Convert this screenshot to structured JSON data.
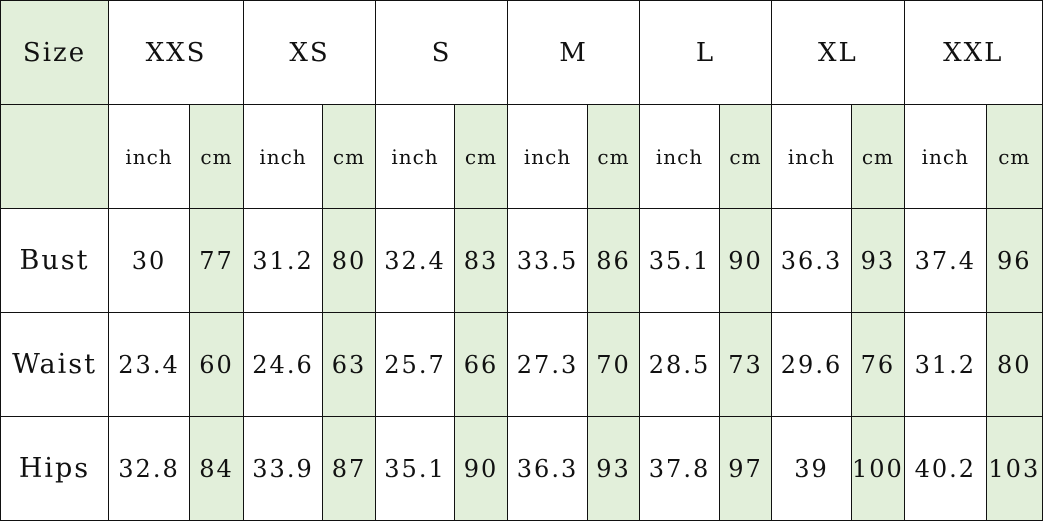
{
  "table": {
    "corner_label": "Size",
    "sizes": [
      "XXS",
      "XS",
      "S",
      "M",
      "L",
      "XL",
      "XXL"
    ],
    "units": [
      "inch",
      "cm"
    ],
    "rows": [
      {
        "label": "Bust",
        "values": [
          [
            "30",
            "77"
          ],
          [
            "31.2",
            "80"
          ],
          [
            "32.4",
            "83"
          ],
          [
            "33.5",
            "86"
          ],
          [
            "35.1",
            "90"
          ],
          [
            "36.3",
            "93"
          ],
          [
            "37.4",
            "96"
          ]
        ]
      },
      {
        "label": "Waist",
        "values": [
          [
            "23.4",
            "60"
          ],
          [
            "24.6",
            "63"
          ],
          [
            "25.7",
            "66"
          ],
          [
            "27.3",
            "70"
          ],
          [
            "28.5",
            "73"
          ],
          [
            "29.6",
            "76"
          ],
          [
            "31.2",
            "80"
          ]
        ]
      },
      {
        "label": "Hips",
        "values": [
          [
            "32.8",
            "84"
          ],
          [
            "33.9",
            "87"
          ],
          [
            "35.1",
            "90"
          ],
          [
            "36.3",
            "93"
          ],
          [
            "37.8",
            "97"
          ],
          [
            "39",
            "100"
          ],
          [
            "40.2",
            "103"
          ]
        ]
      }
    ]
  },
  "colors": {
    "highlight": "#e2efda",
    "border": "#111111"
  }
}
